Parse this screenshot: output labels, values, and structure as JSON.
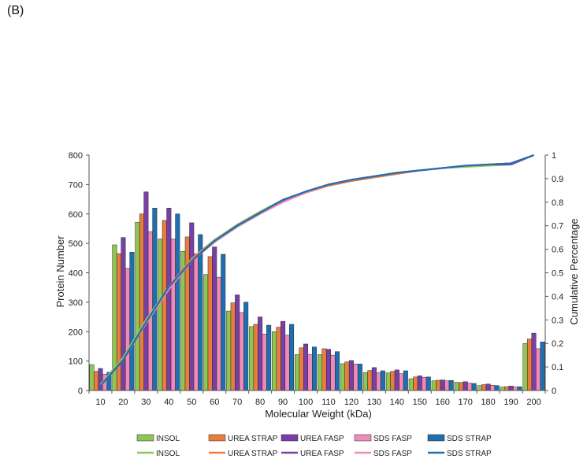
{
  "panel_label": "(B)",
  "chart_data": {
    "type": "bar",
    "categories": [
      "10",
      "20",
      "30",
      "40",
      "50",
      "60",
      "70",
      "80",
      "90",
      "100",
      "110",
      "120",
      "130",
      "140",
      "150",
      "160",
      "170",
      "180",
      "190",
      "200"
    ],
    "xlabel": "Molecular Weight (kDa)",
    "ylabel": "Protein Number",
    "y2label": "Cumulative Percentage",
    "ylim": [
      0,
      800
    ],
    "yticks": [
      0,
      100,
      200,
      300,
      400,
      500,
      600,
      700,
      800
    ],
    "y2lim": [
      0,
      1
    ],
    "y2ticks": [
      "0",
      "0.1",
      "0.2",
      "0.3",
      "0.4",
      "0.5",
      "0.6",
      "0.7",
      "0.8",
      "0.9",
      "1"
    ],
    "grid": false,
    "legend_position": "bottom",
    "series": [
      {
        "name": "INSOL",
        "color": "#8fc652",
        "values": [
          88,
          495,
          572,
          515,
          473,
          394,
          270,
          217,
          200,
          122,
          122,
          91,
          61,
          60,
          40,
          33,
          28,
          17,
          12,
          160
        ]
      },
      {
        "name": "UREA STRAP",
        "color": "#e87d3e",
        "values": [
          65,
          465,
          600,
          578,
          522,
          455,
          298,
          225,
          215,
          145,
          142,
          97,
          68,
          65,
          46,
          35,
          27,
          20,
          13,
          175
        ]
      },
      {
        "name": "UREA FASP",
        "color": "#7a3fa6",
        "values": [
          75,
          520,
          675,
          620,
          570,
          488,
          325,
          250,
          235,
          158,
          140,
          102,
          78,
          70,
          50,
          36,
          30,
          22,
          15,
          195
        ]
      },
      {
        "name": "SDS FASP",
        "color": "#f08ab8",
        "values": [
          55,
          415,
          540,
          515,
          465,
          385,
          265,
          192,
          188,
          122,
          120,
          90,
          61,
          57,
          45,
          33,
          25,
          18,
          12,
          142
        ]
      },
      {
        "name": "SDS STRAP",
        "color": "#1e6fb0",
        "values": [
          62,
          470,
          620,
          600,
          530,
          463,
          300,
          222,
          225,
          148,
          132,
          90,
          67,
          67,
          46,
          34,
          24,
          17,
          13,
          165
        ]
      }
    ],
    "cumulative_series": [
      {
        "name": "INSOL",
        "color": "#8fc652",
        "values": [
          0.025,
          0.14,
          0.3,
          0.44,
          0.56,
          0.64,
          0.705,
          0.76,
          0.81,
          0.845,
          0.875,
          0.895,
          0.91,
          0.925,
          0.935,
          0.945,
          0.95,
          0.955,
          0.96,
          1.0
        ]
      },
      {
        "name": "UREA STRAP",
        "color": "#e87d3e",
        "values": [
          0.02,
          0.13,
          0.29,
          0.44,
          0.56,
          0.635,
          0.7,
          0.755,
          0.805,
          0.84,
          0.87,
          0.89,
          0.905,
          0.92,
          0.935,
          0.945,
          0.955,
          0.96,
          0.965,
          1.0
        ]
      },
      {
        "name": "UREA FASP",
        "color": "#7a3fa6",
        "values": [
          0.02,
          0.13,
          0.29,
          0.43,
          0.55,
          0.635,
          0.7,
          0.755,
          0.805,
          0.845,
          0.875,
          0.895,
          0.91,
          0.925,
          0.935,
          0.945,
          0.955,
          0.96,
          0.96,
          1.0
        ]
      },
      {
        "name": "SDS FASP",
        "color": "#f08ab8",
        "values": [
          0.02,
          0.13,
          0.285,
          0.43,
          0.55,
          0.63,
          0.695,
          0.75,
          0.8,
          0.84,
          0.875,
          0.895,
          0.91,
          0.925,
          0.935,
          0.945,
          0.955,
          0.96,
          0.965,
          1.0
        ]
      },
      {
        "name": "SDS STRAP",
        "color": "#1e6fb0",
        "values": [
          0.02,
          0.13,
          0.29,
          0.44,
          0.55,
          0.635,
          0.7,
          0.755,
          0.81,
          0.845,
          0.875,
          0.895,
          0.91,
          0.925,
          0.935,
          0.945,
          0.955,
          0.96,
          0.965,
          1.0
        ]
      }
    ]
  }
}
